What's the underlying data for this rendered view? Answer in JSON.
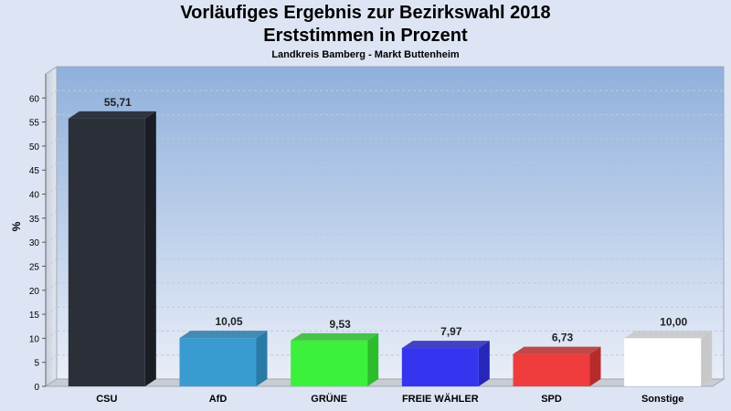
{
  "header": {
    "title_line1": "Vorläufiges Ergebnis zur Bezirkswahl 2018",
    "title_line2": "Erststimmen in Prozent",
    "subtitle": "Landkreis Bamberg - Markt Buttenheim"
  },
  "chart_data": {
    "type": "bar",
    "title": "Vorläufiges Ergebnis zur Bezirkswahl 2018 Erststimmen in Prozent",
    "subtitle": "Landkreis Bamberg - Markt Buttenheim",
    "xlabel": "",
    "ylabel": "%",
    "ylim": [
      0,
      65
    ],
    "yticks": [
      0,
      5,
      10,
      15,
      20,
      25,
      30,
      35,
      40,
      45,
      50,
      55,
      60
    ],
    "grid": true,
    "categories": [
      "CSU",
      "AfD",
      "GRÜNE",
      "FREIE WÄHLER",
      "SPD",
      "Sonstige"
    ],
    "values": [
      55.71,
      10.05,
      9.53,
      7.97,
      6.73,
      10.0
    ],
    "value_labels": [
      "55,71",
      "10,05",
      "9,53",
      "7,97",
      "6,73",
      "10,00"
    ],
    "colors": [
      "#2b2f38",
      "#3a9bd0",
      "#3cf03c",
      "#3535f0",
      "#f03c3c",
      "#ffffff"
    ],
    "side_colors": [
      "#1a1d24",
      "#2a7aa6",
      "#2bbd2b",
      "#2626b8",
      "#b82b2b",
      "#c8c8c8"
    ]
  }
}
